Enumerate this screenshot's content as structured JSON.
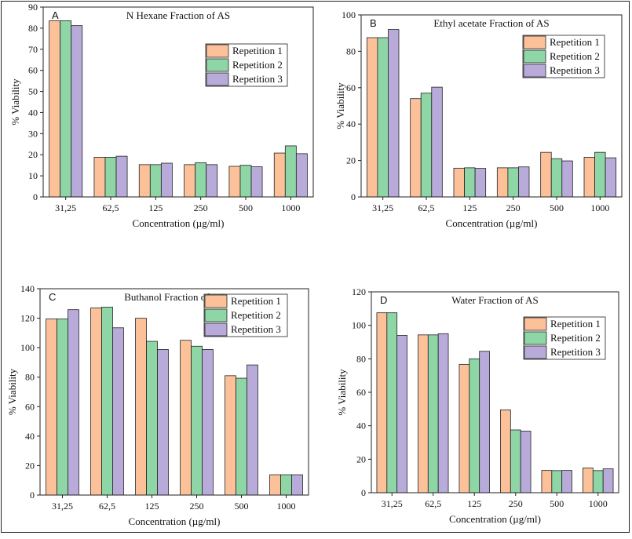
{
  "figure": {
    "legend_labels": [
      "Repetition 1",
      "Repetition 2",
      "Repetition 3"
    ],
    "colors": [
      "#FDC19A",
      "#8FD6A6",
      "#B8ABDA"
    ]
  },
  "chart_data": [
    {
      "type": "bar",
      "panel": "A",
      "title": "N Hexane Fraction of AS",
      "xlabel": "Concentration (µg/ml)",
      "ylabel": "% Viability",
      "categories": [
        "31,25",
        "62,5",
        "125",
        "250",
        "500",
        "1000"
      ],
      "ylim": [
        0,
        90
      ],
      "yticks": [
        0,
        10,
        20,
        30,
        40,
        50,
        60,
        70,
        80,
        90
      ],
      "legend_position": "top-right",
      "series": [
        {
          "name": "Repetition 1",
          "values": [
            83.5,
            18.8,
            15.3,
            15.3,
            14.5,
            20.8
          ]
        },
        {
          "name": "Repetition 2",
          "values": [
            83.5,
            18.8,
            15.3,
            16.2,
            15.0,
            24.2
          ]
        },
        {
          "name": "Repetition 3",
          "values": [
            81.2,
            19.3,
            16.0,
            15.3,
            14.3,
            20.5
          ]
        }
      ]
    },
    {
      "type": "bar",
      "panel": "B",
      "title": "Ethyl acetate Fraction of AS",
      "xlabel": "Concentration (µg/ml)",
      "ylabel": "% Viability",
      "categories": [
        "31,25",
        "62,5",
        "125",
        "250",
        "500",
        "1000"
      ],
      "ylim": [
        0,
        100
      ],
      "yticks": [
        0,
        20,
        40,
        60,
        80,
        100
      ],
      "legend_position": "top-right",
      "series": [
        {
          "name": "Repetition 1",
          "values": [
            87.5,
            54.0,
            15.8,
            16.0,
            24.5,
            21.8
          ]
        },
        {
          "name": "Repetition 2",
          "values": [
            87.5,
            57.0,
            16.0,
            16.0,
            21.0,
            24.5
          ]
        },
        {
          "name": "Repetition 3",
          "values": [
            92.0,
            60.3,
            15.7,
            16.5,
            19.8,
            21.5
          ]
        }
      ]
    },
    {
      "type": "bar",
      "panel": "C",
      "title": "Buthanol Fraction of AS",
      "xlabel": "Concentration (µg/ml)",
      "ylabel": "% Viability",
      "categories": [
        "31,25",
        "62,5",
        "125",
        "250",
        "500",
        "1000"
      ],
      "ylim": [
        0,
        140
      ],
      "yticks": [
        0,
        20,
        40,
        60,
        80,
        100,
        120,
        140
      ],
      "legend_position": "top-right",
      "series": [
        {
          "name": "Repetition 1",
          "values": [
            119.5,
            127.0,
            120.0,
            105.0,
            81.0,
            13.8
          ]
        },
        {
          "name": "Repetition 2",
          "values": [
            119.5,
            127.5,
            104.3,
            101.0,
            79.3,
            13.8
          ]
        },
        {
          "name": "Repetition 3",
          "values": [
            125.8,
            113.5,
            98.8,
            98.8,
            88.3,
            13.8
          ]
        }
      ]
    },
    {
      "type": "bar",
      "panel": "D",
      "title": "Water Fraction of AS",
      "xlabel": "Concentration (µg/ml)",
      "ylabel": "% Viability",
      "categories": [
        "31,25",
        "62,5",
        "125",
        "250",
        "500",
        "1000"
      ],
      "ylim": [
        0,
        120
      ],
      "yticks": [
        0,
        20,
        40,
        60,
        80,
        100,
        120
      ],
      "legend_position": "top-right",
      "series": [
        {
          "name": "Repetition 1",
          "values": [
            107.5,
            94.3,
            76.7,
            49.5,
            13.3,
            14.8
          ]
        },
        {
          "name": "Repetition 2",
          "values": [
            107.5,
            94.3,
            80.0,
            37.5,
            13.2,
            13.2
          ]
        },
        {
          "name": "Repetition 3",
          "values": [
            94.0,
            95.0,
            84.5,
            36.8,
            13.3,
            14.3
          ]
        }
      ]
    }
  ]
}
